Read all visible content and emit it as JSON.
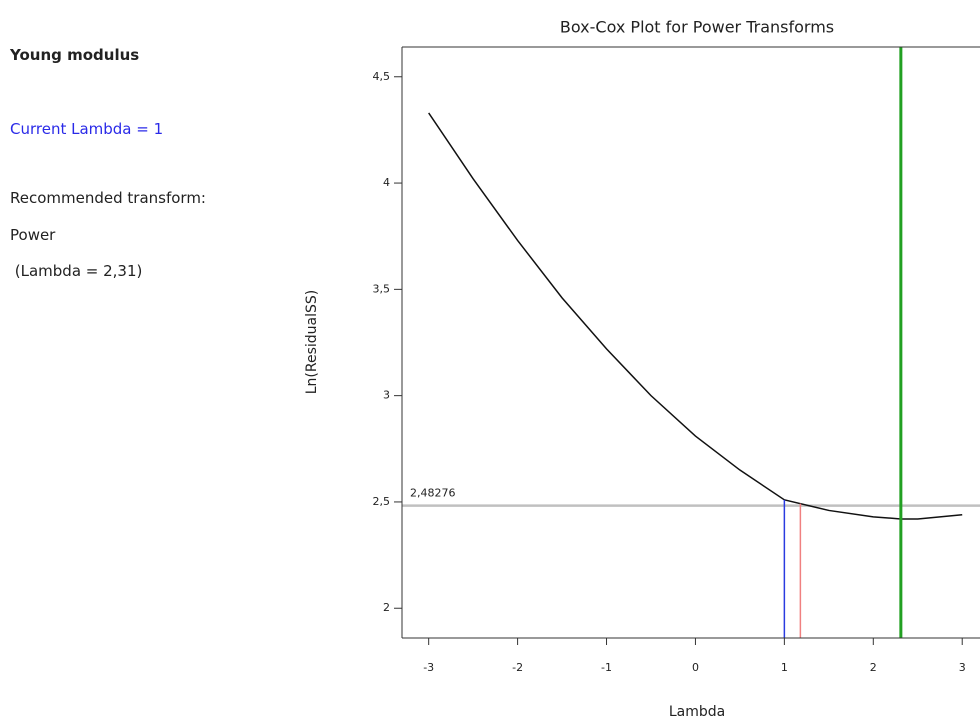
{
  "panel": {
    "heading": "Young modulus",
    "current": "Current Lambda = 1",
    "recommended": "Recommended transform:",
    "transform": "Power",
    "lambda": " (Lambda = 2,31)"
  },
  "chart_data": {
    "type": "line",
    "title": "Box-Cox Plot for Power Transforms",
    "x_label": "Lambda",
    "y_label": "Ln(ResidualSS)",
    "x": [
      -3,
      -2.5,
      -2,
      -1.5,
      -1,
      -0.5,
      0,
      0.5,
      1,
      1.5,
      2,
      2.31,
      2.5,
      3
    ],
    "series": [
      {
        "name": "Ln(ResidualSS)",
        "color": "#111111",
        "values": [
          4.33,
          4.02,
          3.73,
          3.46,
          3.22,
          3.0,
          2.81,
          2.65,
          2.51,
          2.46,
          2.43,
          2.42,
          2.42,
          2.44
        ]
      }
    ],
    "reference_line": {
      "value": 2.48276,
      "label": "2,48276",
      "color": "#c0c0c0"
    },
    "vlines": [
      {
        "value": 1,
        "color": "#2a3be0"
      },
      {
        "value": 1.18,
        "color": "#f08080"
      },
      {
        "value": 2.31,
        "color": "#22a022",
        "full": true
      }
    ],
    "xlim": [
      -3.3,
      3.2
    ],
    "ylim": [
      1.86,
      4.64
    ],
    "xticks": [
      -3,
      -2,
      -1,
      0,
      1,
      2,
      3
    ],
    "yticks": [
      2,
      {
        "value": 2.5,
        "label": "2,5"
      },
      3,
      {
        "value": 3.5,
        "label": "3,5"
      },
      4,
      {
        "value": 4.5,
        "label": "4,5"
      }
    ]
  }
}
